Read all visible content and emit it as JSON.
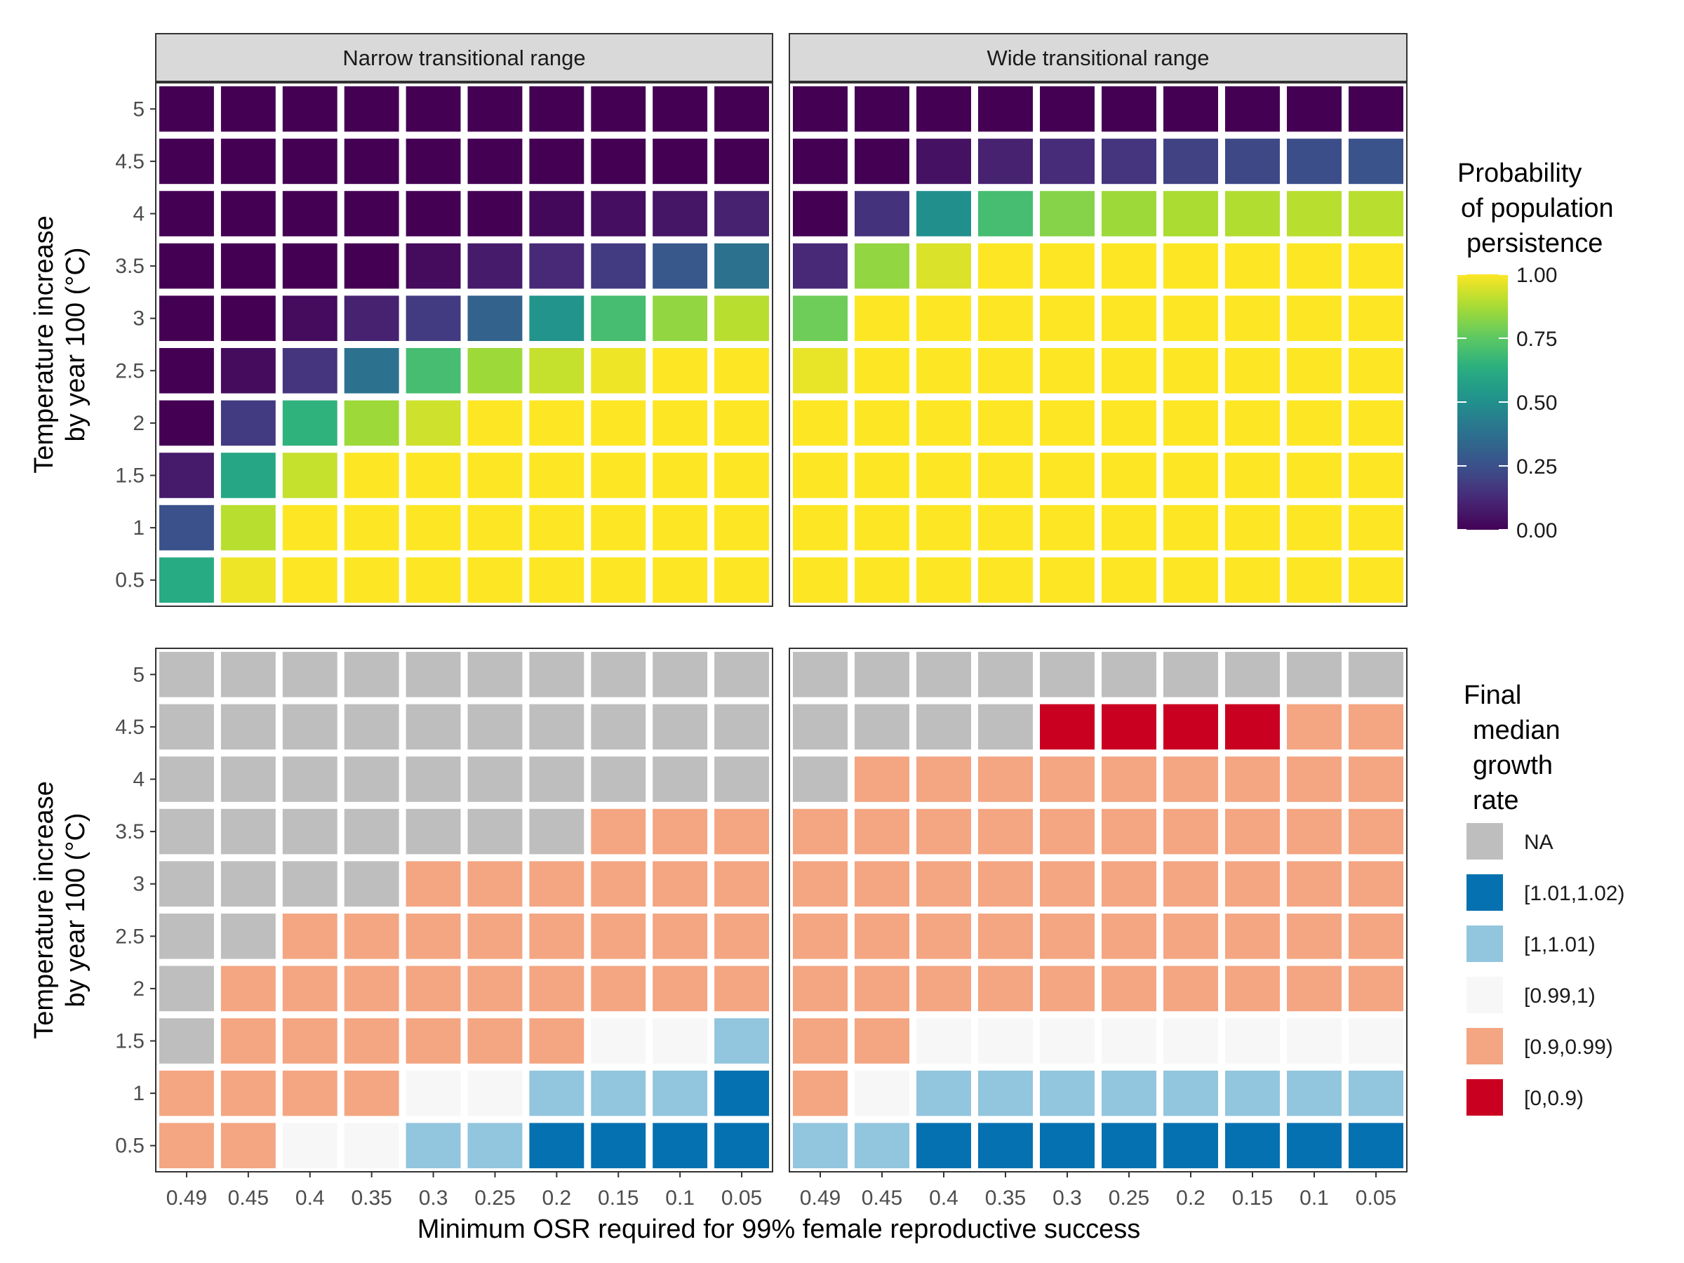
{
  "chart_data": [
    {
      "type": "heatmap",
      "panel": "top",
      "facets": [
        "Narrow transitional range",
        "Wide transitional range"
      ],
      "x_categories": [
        "0.49",
        "0.45",
        "0.4",
        "0.35",
        "0.3",
        "0.25",
        "0.2",
        "0.15",
        "0.1",
        "0.05"
      ],
      "y_categories": [
        "0.5",
        "1",
        "1.5",
        "2",
        "2.5",
        "3",
        "3.5",
        "4",
        "4.5",
        "5"
      ],
      "ylabel": "Temperature increase\nby year 100 (°C)",
      "legend": {
        "title": "Probability\nof population\npersistence",
        "type": "continuous",
        "palette": "viridis",
        "range": [
          0,
          1
        ],
        "breaks": [
          "1.00",
          "0.75",
          "0.50",
          "0.25",
          "0.00"
        ],
        "placement": "right"
      },
      "values": {
        "Narrow transitional range": [
          [
            0.62,
            0.98,
            1,
            1,
            1,
            1,
            1,
            1,
            1,
            1
          ],
          [
            0.25,
            0.9,
            1,
            1,
            1,
            1,
            1,
            1,
            1,
            1
          ],
          [
            0.08,
            0.6,
            0.92,
            1,
            1,
            1,
            1,
            1,
            1,
            1
          ],
          [
            0.0,
            0.18,
            0.65,
            0.86,
            0.93,
            1,
            1,
            1,
            1,
            1
          ],
          [
            0.0,
            0.03,
            0.16,
            0.38,
            0.7,
            0.86,
            0.92,
            0.98,
            1,
            1
          ],
          [
            0.0,
            0.0,
            0.03,
            0.1,
            0.18,
            0.32,
            0.52,
            0.7,
            0.84,
            0.9
          ],
          [
            0.0,
            0.0,
            0.0,
            0.0,
            0.03,
            0.08,
            0.12,
            0.18,
            0.28,
            0.38
          ],
          [
            0.0,
            0.0,
            0.0,
            0.0,
            0.0,
            0.0,
            0.02,
            0.04,
            0.06,
            0.1
          ],
          [
            0.0,
            0.0,
            0.0,
            0.0,
            0.0,
            0.0,
            0.0,
            0.0,
            0.0,
            0.0
          ],
          [
            0.0,
            0.0,
            0.0,
            0.0,
            0.0,
            0.0,
            0.0,
            0.0,
            0.0,
            0.0
          ]
        ],
        "Wide transitional range": [
          [
            1,
            1,
            1,
            1,
            1,
            1,
            1,
            1,
            1,
            1
          ],
          [
            1,
            1,
            1,
            1,
            1,
            1,
            1,
            1,
            1,
            1
          ],
          [
            1,
            1,
            1,
            1,
            1,
            1,
            1,
            1,
            1,
            1
          ],
          [
            1,
            1,
            1,
            1,
            1,
            1,
            1,
            1,
            1,
            1
          ],
          [
            0.97,
            1,
            1,
            1,
            1,
            1,
            1,
            1,
            1,
            1
          ],
          [
            0.78,
            1,
            1,
            1,
            1,
            1,
            1,
            1,
            1,
            1
          ],
          [
            0.12,
            0.84,
            0.95,
            1,
            1,
            1,
            1,
            1,
            1,
            1
          ],
          [
            0.0,
            0.15,
            0.5,
            0.7,
            0.82,
            0.86,
            0.88,
            0.89,
            0.9,
            0.9
          ],
          [
            0.0,
            0.0,
            0.05,
            0.1,
            0.13,
            0.16,
            0.2,
            0.22,
            0.24,
            0.26
          ],
          [
            0.0,
            0.0,
            0.0,
            0.0,
            0.0,
            0.0,
            0.0,
            0.0,
            0.0,
            0.0
          ]
        ]
      }
    },
    {
      "type": "heatmap",
      "panel": "bottom",
      "facets": [
        "Narrow transitional range",
        "Wide transitional range"
      ],
      "x_categories": [
        "0.49",
        "0.45",
        "0.4",
        "0.35",
        "0.3",
        "0.25",
        "0.2",
        "0.15",
        "0.1",
        "0.05"
      ],
      "y_categories": [
        "0.5",
        "1",
        "1.5",
        "2",
        "2.5",
        "3",
        "3.5",
        "4",
        "4.5",
        "5"
      ],
      "xlabel": "Minimum OSR required for 99% female reproductive success",
      "ylabel": "Temperature increase\nby year 100 (°C)",
      "legend": {
        "title": "Final\nmedian\ngrowth\nrate",
        "type": "categorical",
        "placement": "right",
        "categories": [
          {
            "key": "NA",
            "label": "NA",
            "color": "#bebebe"
          },
          {
            "key": "B2",
            "label": "[1.01,1.02)",
            "color": "#0571b0"
          },
          {
            "key": "B1",
            "label": "[1,1.01)",
            "color": "#92c5de"
          },
          {
            "key": "W",
            "label": "[0.99,1)",
            "color": "#f7f7f7"
          },
          {
            "key": "S",
            "label": "[0.9,0.99)",
            "color": "#f4a582"
          },
          {
            "key": "R",
            "label": "[0,0.9)",
            "color": "#ca0020"
          }
        ]
      },
      "values": {
        "Narrow transitional range": [
          [
            "S",
            "S",
            "W",
            "W",
            "B1",
            "B1",
            "B2",
            "B2",
            "B2",
            "B2"
          ],
          [
            "S",
            "S",
            "S",
            "S",
            "W",
            "W",
            "B1",
            "B1",
            "B1",
            "B2"
          ],
          [
            "NA",
            "S",
            "S",
            "S",
            "S",
            "S",
            "S",
            "W",
            "W",
            "B1"
          ],
          [
            "NA",
            "S",
            "S",
            "S",
            "S",
            "S",
            "S",
            "S",
            "S",
            "S"
          ],
          [
            "NA",
            "NA",
            "S",
            "S",
            "S",
            "S",
            "S",
            "S",
            "S",
            "S"
          ],
          [
            "NA",
            "NA",
            "NA",
            "NA",
            "S",
            "S",
            "S",
            "S",
            "S",
            "S"
          ],
          [
            "NA",
            "NA",
            "NA",
            "NA",
            "NA",
            "NA",
            "NA",
            "S",
            "S",
            "S"
          ],
          [
            "NA",
            "NA",
            "NA",
            "NA",
            "NA",
            "NA",
            "NA",
            "NA",
            "NA",
            "NA"
          ],
          [
            "NA",
            "NA",
            "NA",
            "NA",
            "NA",
            "NA",
            "NA",
            "NA",
            "NA",
            "NA"
          ],
          [
            "NA",
            "NA",
            "NA",
            "NA",
            "NA",
            "NA",
            "NA",
            "NA",
            "NA",
            "NA"
          ]
        ],
        "Wide transitional range": [
          [
            "B1",
            "B1",
            "B2",
            "B2",
            "B2",
            "B2",
            "B2",
            "B2",
            "B2",
            "B2"
          ],
          [
            "S",
            "W",
            "B1",
            "B1",
            "B1",
            "B1",
            "B1",
            "B1",
            "B1",
            "B1"
          ],
          [
            "S",
            "S",
            "W",
            "W",
            "W",
            "W",
            "W",
            "W",
            "W",
            "W"
          ],
          [
            "S",
            "S",
            "S",
            "S",
            "S",
            "S",
            "S",
            "S",
            "S",
            "S"
          ],
          [
            "S",
            "S",
            "S",
            "S",
            "S",
            "S",
            "S",
            "S",
            "S",
            "S"
          ],
          [
            "S",
            "S",
            "S",
            "S",
            "S",
            "S",
            "S",
            "S",
            "S",
            "S"
          ],
          [
            "S",
            "S",
            "S",
            "S",
            "S",
            "S",
            "S",
            "S",
            "S",
            "S"
          ],
          [
            "NA",
            "S",
            "S",
            "S",
            "S",
            "S",
            "S",
            "S",
            "S",
            "S"
          ],
          [
            "NA",
            "NA",
            "NA",
            "NA",
            "R",
            "R",
            "R",
            "R",
            "S",
            "S"
          ],
          [
            "NA",
            "NA",
            "NA",
            "NA",
            "NA",
            "NA",
            "NA",
            "NA",
            "NA",
            "NA"
          ]
        ]
      }
    }
  ],
  "colors": {
    "strip_background": "#d9d9d9",
    "panel_border": "#333333",
    "tile_gap": "#ffffff"
  }
}
